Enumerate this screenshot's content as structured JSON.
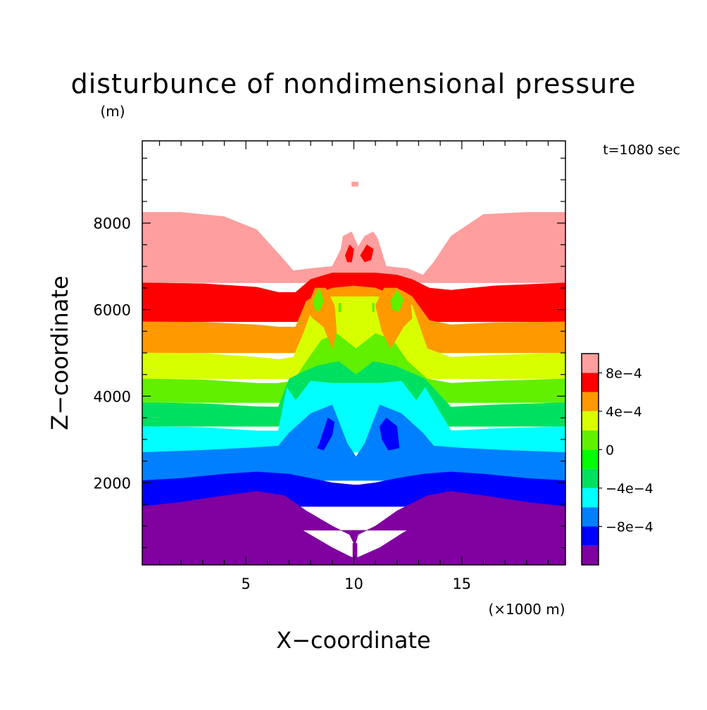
{
  "chart_data": {
    "type": "heatmap",
    "title": "disturbunce of nondimensional pressure",
    "ylabel_unit": "(m)",
    "xlabel": "X−coordinate",
    "ylabel": "Z−coordinate",
    "xlabel_unit": "(×1000 m)",
    "time_annotation": "t=1080 sec",
    "xlim": [
      0.2,
      19.8
    ],
    "ylim": [
      100,
      9900
    ],
    "x_ticks": [
      {
        "value": 5,
        "label": "5"
      },
      {
        "value": 10,
        "label": "10"
      },
      {
        "value": 15,
        "label": "15"
      }
    ],
    "y_ticks": [
      {
        "value": 2000,
        "label": "2000"
      },
      {
        "value": 4000,
        "label": "4000"
      },
      {
        "value": 6000,
        "label": "6000"
      },
      {
        "value": 8000,
        "label": "8000"
      }
    ],
    "grid": false,
    "legend": {
      "placement": "right",
      "levels": [
        {
          "from": -0.0012,
          "to": -0.001,
          "color": "#8000a0"
        },
        {
          "from": -0.001,
          "to": -0.0008,
          "color": "#0000ff"
        },
        {
          "from": -0.0008,
          "to": -0.0006,
          "color": "#0080ff"
        },
        {
          "from": -0.0006,
          "to": -0.0004,
          "color": "#00ffff"
        },
        {
          "from": -0.0004,
          "to": -0.0002,
          "color": "#00e060"
        },
        {
          "from": -0.0002,
          "to": 0.0,
          "color": "#00ff00"
        },
        {
          "from": 0.0,
          "to": 0.0002,
          "color": "#60f000"
        },
        {
          "from": 0.0002,
          "to": 0.0004,
          "color": "#d8ff00"
        },
        {
          "from": 0.0004,
          "to": 0.0006,
          "color": "#ff9900"
        },
        {
          "from": 0.0006,
          "to": 0.0008,
          "color": "#ff0000"
        },
        {
          "from": 0.0008,
          "to": 0.001,
          "color": "#ff9e9e"
        }
      ],
      "tick_labels": [
        {
          "value": -0.0008,
          "label": "−8e−4"
        },
        {
          "value": -0.0004,
          "label": "−4e−4"
        },
        {
          "value": 0.0,
          "label": "0"
        },
        {
          "value": 0.0004,
          "label": "4e−4"
        },
        {
          "value": 0.0008,
          "label": "8e−4"
        }
      ]
    },
    "contour_regions": [
      {
        "name": "pink",
        "level": 0.0009,
        "color": "#ff9e9e",
        "x": [
          0.2,
          2,
          4,
          5.5,
          6.5,
          7.2,
          8,
          9,
          9.4,
          9.5,
          9.9,
          10.2,
          10.5,
          10.9,
          11.1,
          11.5,
          12.5,
          13.2,
          13.7,
          14.5,
          16,
          18,
          19.8,
          19.8,
          0.2
        ],
        "z": [
          8250,
          8250,
          8150,
          7850,
          7300,
          6900,
          6950,
          7000,
          7400,
          7700,
          7800,
          7450,
          7700,
          7800,
          7650,
          7000,
          6950,
          6800,
          7100,
          7700,
          8200,
          8250,
          8250,
          6620,
          6620
        ]
      },
      {
        "name": "red",
        "level": 0.0007,
        "color": "#ff0000",
        "x": [
          0.2,
          3,
          5.5,
          6.5,
          7.3,
          8,
          9,
          10,
          11,
          12,
          12.7,
          13.5,
          14.5,
          16.5,
          19.8,
          19.8,
          0.2
        ],
        "z": [
          6620,
          6600,
          6520,
          6400,
          6400,
          6700,
          6850,
          6850,
          6850,
          6800,
          6700,
          6500,
          6450,
          6550,
          6620,
          5720,
          5720
        ]
      },
      {
        "name": "orange",
        "level": 0.0005,
        "color": "#ff9900",
        "x": [
          0.2,
          3,
          5.5,
          6.5,
          7.3,
          7.8,
          8.5,
          9,
          10,
          11,
          11.5,
          12.2,
          12.7,
          13.5,
          14.5,
          16.5,
          19.8,
          19.8,
          0.2
        ],
        "z": [
          5720,
          5710,
          5650,
          5600,
          5600,
          6200,
          6400,
          6500,
          6550,
          6500,
          6400,
          6450,
          6300,
          5750,
          5650,
          5700,
          5720,
          5000,
          5000
        ]
      },
      {
        "name": "yellow",
        "level": 0.0003,
        "color": "#d8ff00",
        "x": [
          0.2,
          3,
          5.5,
          6.5,
          7.2,
          7.7,
          8.2,
          9,
          10,
          11,
          12,
          12.7,
          13.4,
          14.5,
          16.5,
          19.8,
          19.8,
          0.2
        ],
        "z": [
          5000,
          4990,
          4900,
          4850,
          4900,
          5500,
          6200,
          6300,
          6300,
          6300,
          6250,
          6100,
          5100,
          4900,
          4950,
          5000,
          4400,
          4400
        ]
      },
      {
        "name": "green",
        "level": 0.0001,
        "color": "#60f000",
        "x": [
          0.2,
          3,
          5.5,
          6.5,
          7.2,
          7.8,
          8.5,
          9.2,
          10.1,
          11,
          11.8,
          12.5,
          13.4,
          14.5,
          16.5,
          19.8,
          19.8,
          0.2
        ],
        "z": [
          4400,
          4380,
          4300,
          4300,
          4350,
          4800,
          5300,
          5450,
          5100,
          5450,
          5300,
          4800,
          4400,
          4300,
          4350,
          4400,
          3850,
          3850
        ]
      },
      {
        "name": "cyan-green",
        "level": -0.0001,
        "color": "#00e060",
        "x": [
          0.2,
          3,
          5.5,
          6.5,
          7,
          7.6,
          8.3,
          9.3,
          10.1,
          10.9,
          11.9,
          12.6,
          13.3,
          14.5,
          16.5,
          19.8,
          19.8,
          0.2
        ],
        "z": [
          3850,
          3830,
          3760,
          3750,
          4400,
          4550,
          4700,
          4800,
          4500,
          4800,
          4700,
          4550,
          4400,
          3750,
          3800,
          3850,
          3300,
          3300
        ]
      },
      {
        "name": "cyan",
        "level": -0.0005,
        "color": "#00ffff",
        "x": [
          0.2,
          3,
          5.5,
          6.5,
          6.9,
          7.3,
          8,
          9,
          10.1,
          11.2,
          12.2,
          12.9,
          13.3,
          14.5,
          16.5,
          19.8,
          19.8,
          0.2
        ],
        "z": [
          3300,
          3280,
          3200,
          3200,
          4200,
          3900,
          4350,
          4300,
          4300,
          4300,
          4350,
          3900,
          4200,
          3200,
          3250,
          3300,
          2700,
          2700
        ]
      },
      {
        "name": "light-blue",
        "level": -0.0007,
        "color": "#0080ff",
        "x": [
          0.2,
          3,
          5,
          6.5,
          7,
          8,
          9,
          9.7,
          10.1,
          10.5,
          11.2,
          12.2,
          13.2,
          13.7,
          15,
          17,
          19.8,
          19.8,
          0.2
        ],
        "z": [
          2700,
          2750,
          2800,
          2850,
          3150,
          3600,
          3800,
          2900,
          2600,
          2900,
          3800,
          3600,
          3150,
          2850,
          2800,
          2750,
          2700,
          2050,
          2050
        ]
      },
      {
        "name": "blue",
        "level": -0.0009,
        "color": "#0000ff",
        "x": [
          0.2,
          2,
          4,
          5.5,
          7,
          8,
          9,
          10,
          10.1,
          10.2,
          11,
          12,
          13.2,
          14.5,
          16,
          18,
          19.8,
          19.8,
          0.2
        ],
        "z": [
          2050,
          2100,
          2200,
          2250,
          2200,
          2100,
          2000,
          1950,
          1950,
          1950,
          2000,
          2100,
          2200,
          2250,
          2200,
          2100,
          2050,
          1450,
          1450
        ]
      },
      {
        "name": "purple",
        "level": -0.0011,
        "color": "#8000a0",
        "x": [
          0.2,
          2,
          4,
          5.5,
          6.8,
          7.8,
          9,
          9.8,
          10.05,
          10.2,
          11,
          12,
          13.4,
          14.5,
          16,
          18,
          19.8,
          19.8,
          0.2
        ],
        "z": [
          1450,
          1550,
          1700,
          1800,
          1700,
          1350,
          1000,
          800,
          550,
          800,
          1000,
          1350,
          1700,
          1800,
          1700,
          1550,
          1450,
          900,
          900
        ]
      },
      {
        "name": "purple-stem",
        "level": -0.0011,
        "color": "#8000a0",
        "x": [
          9.95,
          10.15,
          10.15,
          9.95
        ],
        "z": [
          600,
          600,
          100,
          100
        ]
      },
      {
        "name": "purple-lower-bound",
        "level": -0.0011,
        "color": "#8000a0",
        "x": [
          0.2,
          2,
          4,
          5.5,
          6.8,
          7.8,
          9,
          9.8,
          10.05,
          10.3,
          11.2,
          12.3,
          13.4,
          14.5,
          16,
          18,
          19.8,
          19.8,
          0.2
        ],
        "z": [
          900,
          1000,
          1150,
          1250,
          1150,
          850,
          500,
          300,
          250,
          300,
          500,
          850,
          1150,
          1250,
          1150,
          1000,
          900,
          100,
          100
        ]
      }
    ],
    "cells": [
      {
        "name": "pink-dot",
        "color": "#ff9e9e",
        "x": [
          9.9,
          10.2,
          10.2,
          9.9
        ],
        "z": [
          8950,
          8950,
          8850,
          8850
        ]
      },
      {
        "name": "red-cell-left",
        "color": "#ff0000",
        "x": [
          9.6,
          9.8,
          10.0,
          9.9,
          9.7
        ],
        "z": [
          7250,
          7500,
          7400,
          7100,
          7100
        ]
      },
      {
        "name": "red-cell-right",
        "color": "#ff0000",
        "x": [
          10.3,
          10.6,
          10.9,
          10.8,
          10.5
        ],
        "z": [
          7250,
          7500,
          7400,
          7150,
          7100
        ]
      },
      {
        "name": "orange-ring-left",
        "color": "#ff9900",
        "x": [
          7.8,
          8.2,
          8.7,
          9.1,
          9.2,
          9.0,
          8.6,
          8.1
        ],
        "z": [
          6000,
          6500,
          6500,
          6100,
          5500,
          5100,
          5600,
          5800
        ]
      },
      {
        "name": "orange-ring-right",
        "color": "#ff9900",
        "x": [
          11.0,
          11.4,
          12.0,
          12.6,
          12.7,
          12.3,
          11.7,
          11.3
        ],
        "z": [
          6100,
          6500,
          6500,
          6300,
          5800,
          5600,
          5100,
          5500
        ]
      },
      {
        "name": "green-cell-left",
        "color": "#60f000",
        "x": [
          8.1,
          8.4,
          8.6,
          8.4,
          8.2
        ],
        "z": [
          6200,
          6500,
          6200,
          5950,
          6000
        ]
      },
      {
        "name": "green-cell-right",
        "color": "#60f000",
        "x": [
          11.7,
          12.0,
          12.3,
          12.1,
          11.8
        ],
        "z": [
          6200,
          6450,
          6250,
          5950,
          6000
        ]
      },
      {
        "name": "green-dot-left",
        "color": "#60f000",
        "x": [
          9.3,
          9.4,
          9.4,
          9.3
        ],
        "z": [
          6150,
          6150,
          5950,
          5950
        ]
      },
      {
        "name": "green-dot-right",
        "color": "#60f000",
        "x": [
          10.85,
          10.95,
          10.95,
          10.85
        ],
        "z": [
          6150,
          6150,
          5950,
          5950
        ]
      },
      {
        "name": "blue-cell-left",
        "color": "#0000ff",
        "x": [
          8.4,
          8.8,
          9.1,
          9.0,
          8.6,
          8.3
        ],
        "z": [
          2900,
          3500,
          3400,
          3100,
          2750,
          2800
        ]
      },
      {
        "name": "blue-cell-right",
        "color": "#0000ff",
        "x": [
          11.2,
          11.5,
          12.0,
          12.1,
          11.6,
          11.3
        ],
        "z": [
          3300,
          3500,
          3300,
          2800,
          2750,
          3000
        ]
      }
    ]
  }
}
